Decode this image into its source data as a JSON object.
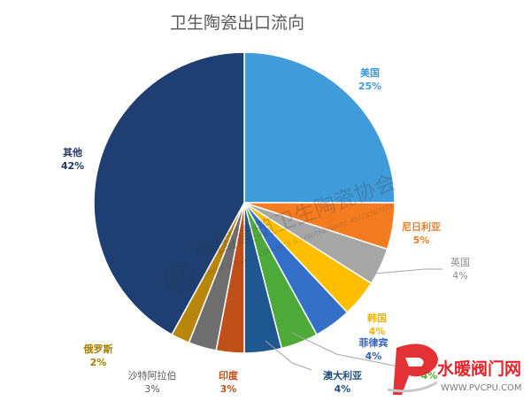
{
  "chart_data": {
    "type": "pie",
    "title": "卫生陶瓷出口流向",
    "start": "12 o'clock, clockwise",
    "slices": [
      {
        "name": "美国",
        "value": 25,
        "pct_label": "25%",
        "color": "#3F9BD9",
        "label_color": "#3F9BD9",
        "bold": true
      },
      {
        "name": "尼日利亚",
        "value": 5,
        "pct_label": "5%",
        "color": "#F47B20",
        "label_color": "#F47B20",
        "bold": true
      },
      {
        "name": "英国",
        "value": 4,
        "pct_label": "4%",
        "color": "#A6A6A6",
        "label_color": "#8C8C8C",
        "bold": false
      },
      {
        "name": "韩国",
        "value": 4,
        "pct_label": "4%",
        "color": "#FFBF00",
        "label_color": "#F2B500",
        "bold": true
      },
      {
        "name": "菲律宾",
        "value": 4,
        "pct_label": "4%",
        "color": "#3470C8",
        "label_color": "#2E63B6",
        "bold": true
      },
      {
        "name": "",
        "value": 4,
        "pct_label": "4%",
        "color": "#4EAA38",
        "label_color": "#4EAA38",
        "bold": true
      },
      {
        "name": "澳大利亚",
        "value": 4,
        "pct_label": "4%",
        "color": "#1F5790",
        "label_color": "#1F4E79",
        "bold": true
      },
      {
        "name": "印度",
        "value": 3,
        "pct_label": "3%",
        "color": "#C0501A",
        "label_color": "#C0501A",
        "bold": true
      },
      {
        "name": "沙特阿拉伯",
        "value": 3,
        "pct_label": "3%",
        "color": "#6E6E6E",
        "label_color": "#595959",
        "bold": false
      },
      {
        "name": "俄罗斯",
        "value": 2,
        "pct_label": "2%",
        "color": "#B8860B",
        "label_color": "#A67C00",
        "bold": true
      },
      {
        "name": "其他",
        "value": 42,
        "pct_label": "42%",
        "color": "#1F3F73",
        "label_color": "#1F3864",
        "bold": true
      }
    ]
  },
  "watermark": {
    "association": "中国建筑卫生陶瓷协会",
    "association_en": "CHINA BUILDING CERAMICS & SANITARYWARE ASSOCIATION",
    "logo": "pvcpu-logo",
    "site_name": "水暖阀门网",
    "site_url": "WWW.PVCPU.COM"
  },
  "colors": {
    "site_red": "#E3262B"
  }
}
